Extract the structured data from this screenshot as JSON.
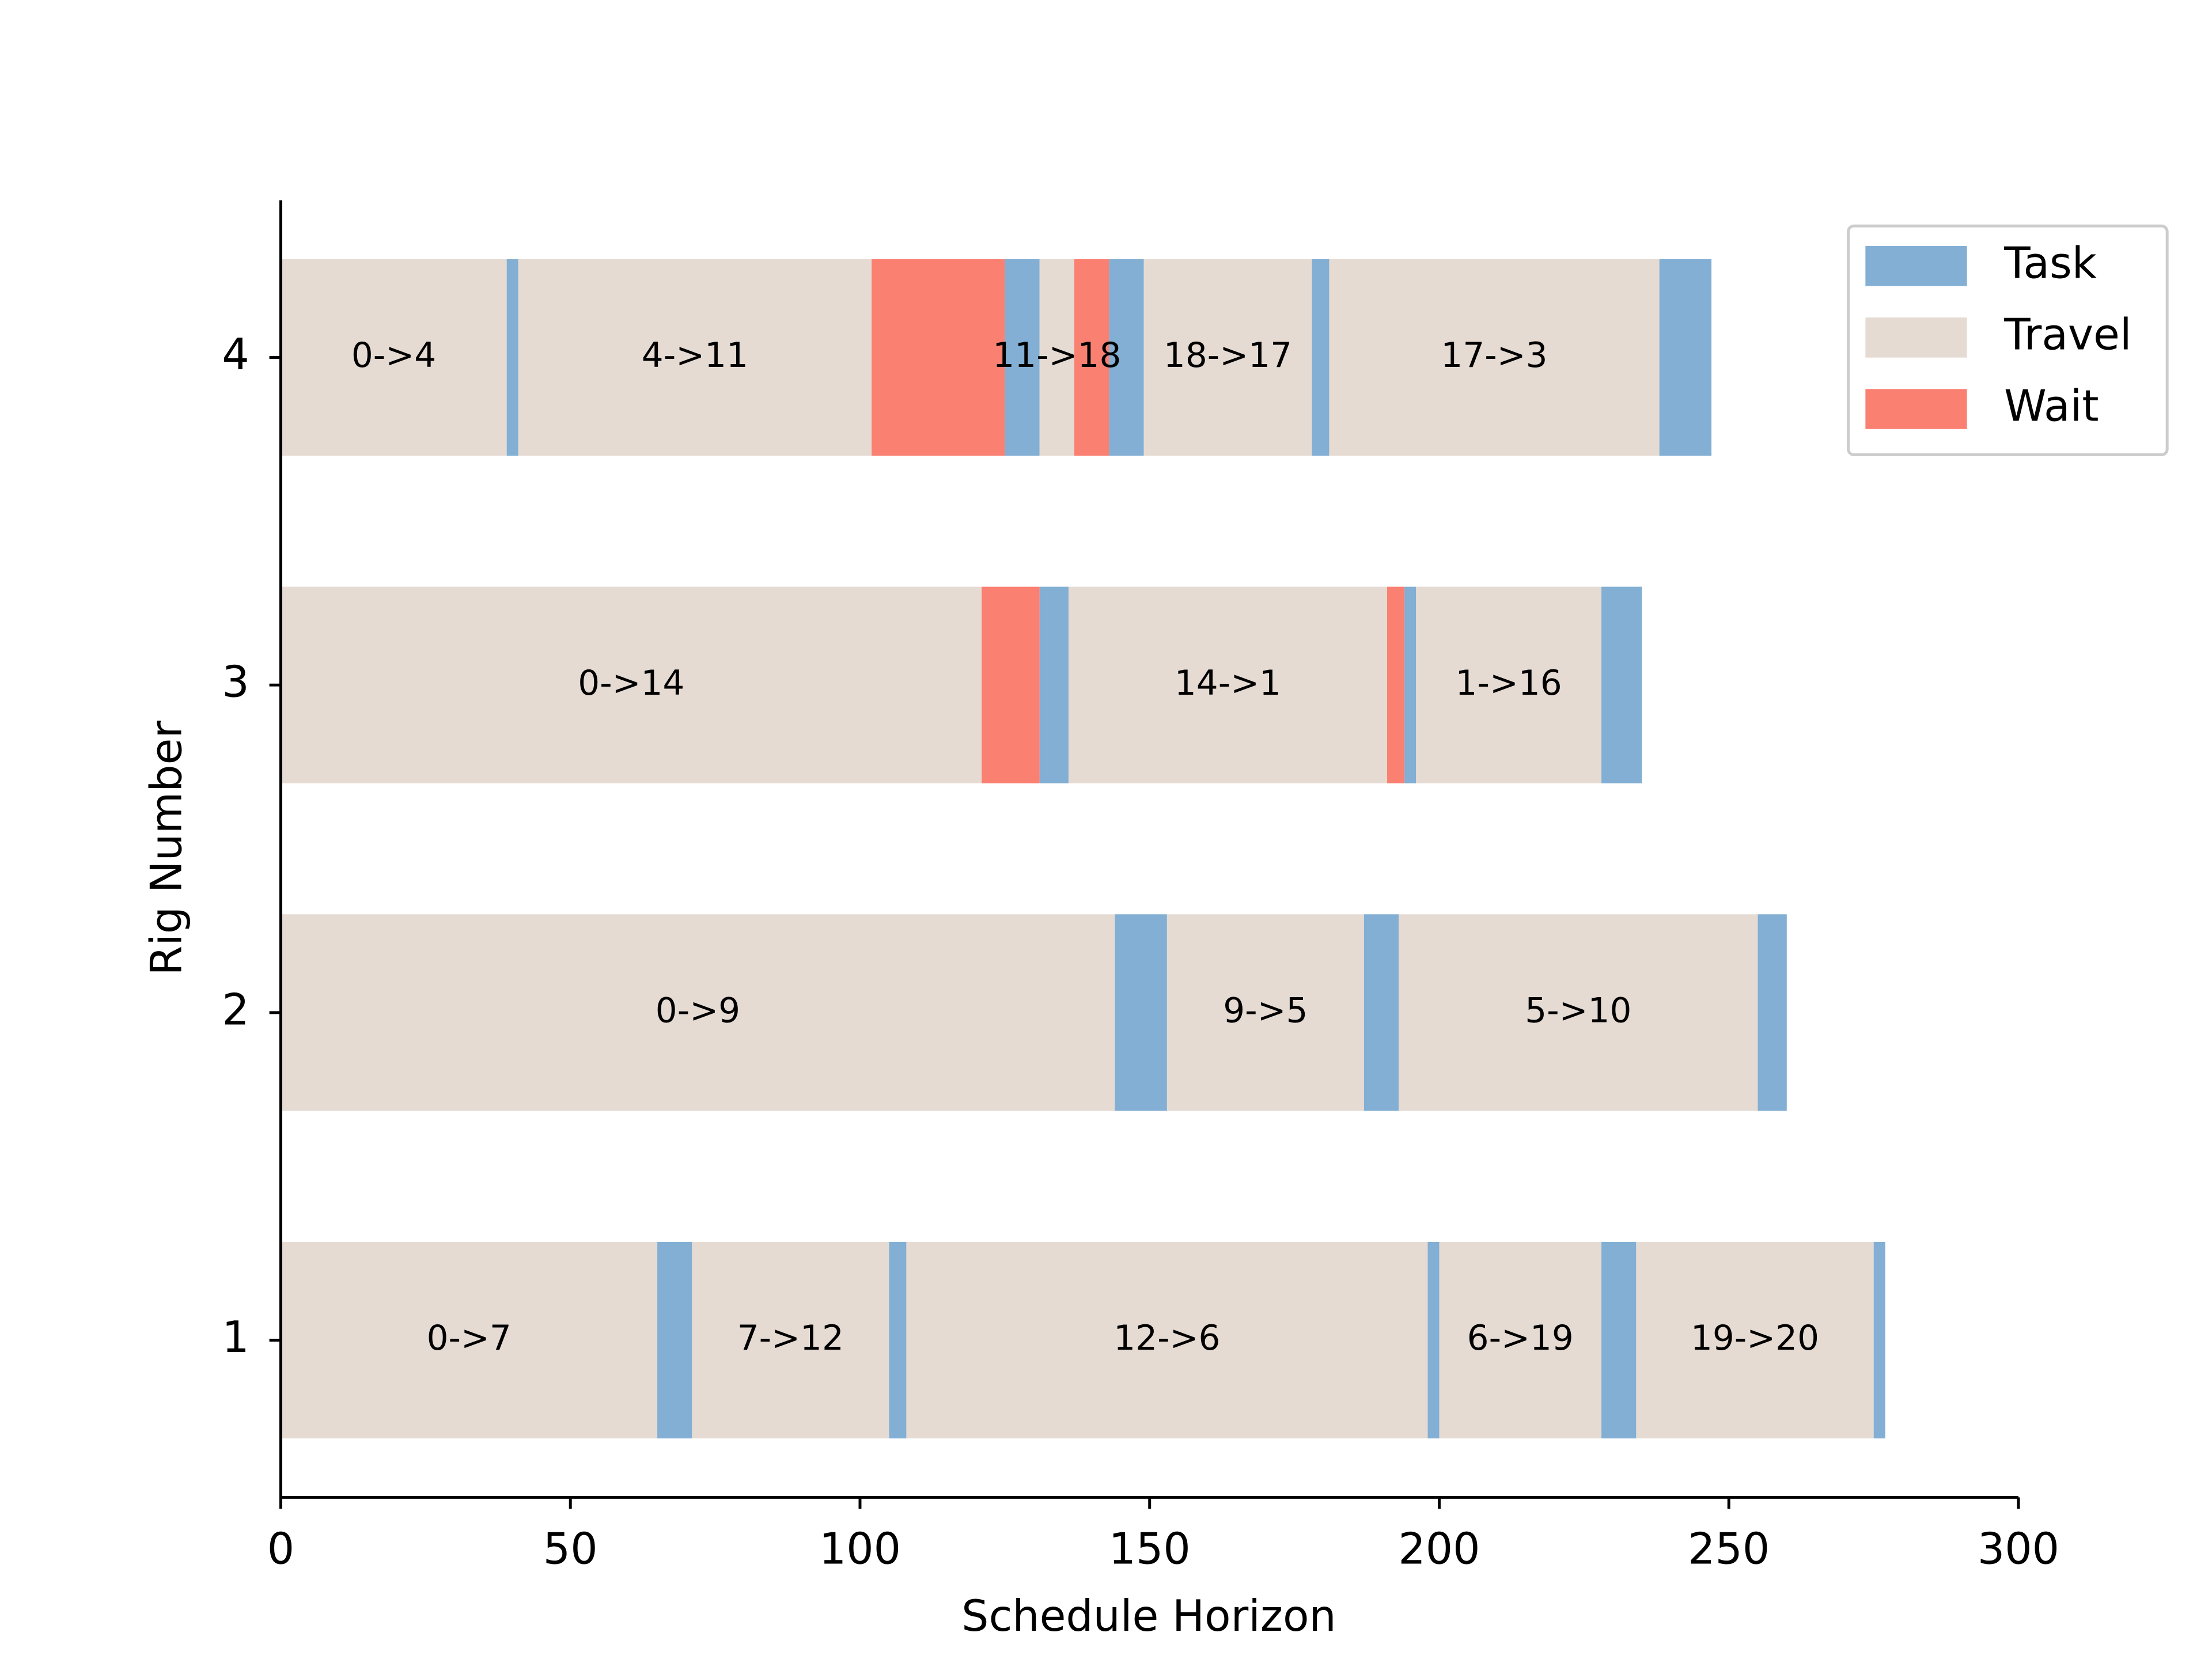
{
  "chart_data": {
    "type": "gantt",
    "xlabel": "Schedule Horizon",
    "ylabel": "Rig Number",
    "xlim": [
      0,
      300
    ],
    "xticks": [
      0,
      50,
      100,
      150,
      200,
      250,
      300
    ],
    "ylim": [
      0.52,
      4.48
    ],
    "yticks": [
      1,
      2,
      3,
      4
    ],
    "legend": "upper right",
    "series": [
      {
        "name": "Task",
        "color": "#82afd3",
        "bars": [
          {
            "y": 4,
            "start": 39,
            "duration": 2
          },
          {
            "y": 4,
            "start": 125,
            "duration": 6
          },
          {
            "y": 4,
            "start": 143,
            "duration": 6
          },
          {
            "y": 4,
            "start": 178,
            "duration": 3
          },
          {
            "y": 4,
            "start": 238,
            "duration": 9
          },
          {
            "y": 3,
            "start": 131,
            "duration": 5
          },
          {
            "y": 3,
            "start": 194,
            "duration": 2
          },
          {
            "y": 3,
            "start": 228,
            "duration": 7
          },
          {
            "y": 2,
            "start": 144,
            "duration": 9
          },
          {
            "y": 2,
            "start": 187,
            "duration": 6
          },
          {
            "y": 2,
            "start": 255,
            "duration": 5
          },
          {
            "y": 1,
            "start": 65,
            "duration": 6
          },
          {
            "y": 1,
            "start": 105,
            "duration": 3
          },
          {
            "y": 1,
            "start": 198,
            "duration": 2
          },
          {
            "y": 1,
            "start": 228,
            "duration": 6
          },
          {
            "y": 1,
            "start": 275,
            "duration": 2
          }
        ]
      },
      {
        "name": "Travel",
        "color": "#e6dbd3",
        "bars": [
          {
            "y": 4,
            "start": 0,
            "duration": 39,
            "label": "0->4"
          },
          {
            "y": 4,
            "start": 41,
            "duration": 61,
            "label": "4->11"
          },
          {
            "y": 4,
            "start": 131,
            "duration": 6,
            "label": "11->18"
          },
          {
            "y": 4,
            "start": 149,
            "duration": 29,
            "label": "18->17"
          },
          {
            "y": 4,
            "start": 181,
            "duration": 57,
            "label": "17->3"
          },
          {
            "y": 3,
            "start": 0,
            "duration": 121,
            "label": "0->14"
          },
          {
            "y": 3,
            "start": 136,
            "duration": 55,
            "label": "14->1"
          },
          {
            "y": 3,
            "start": 196,
            "duration": 32,
            "label": "1->16"
          },
          {
            "y": 2,
            "start": 0,
            "duration": 144,
            "label": "0->9"
          },
          {
            "y": 2,
            "start": 153,
            "duration": 34,
            "label": "9->5"
          },
          {
            "y": 2,
            "start": 193,
            "duration": 62,
            "label": "5->10"
          },
          {
            "y": 1,
            "start": 0,
            "duration": 65,
            "label": "0->7"
          },
          {
            "y": 1,
            "start": 71,
            "duration": 34,
            "label": "7->12"
          },
          {
            "y": 1,
            "start": 108,
            "duration": 90,
            "label": "12->6"
          },
          {
            "y": 1,
            "start": 200,
            "duration": 28,
            "label": "6->19"
          },
          {
            "y": 1,
            "start": 234,
            "duration": 41,
            "label": "19->20"
          }
        ]
      },
      {
        "name": "Wait",
        "color": "#fa8072",
        "bars": [
          {
            "y": 4,
            "start": 102,
            "duration": 23
          },
          {
            "y": 4,
            "start": 137,
            "duration": 6
          },
          {
            "y": 3,
            "start": 121,
            "duration": 10
          },
          {
            "y": 3,
            "start": 191,
            "duration": 3
          }
        ]
      }
    ]
  }
}
